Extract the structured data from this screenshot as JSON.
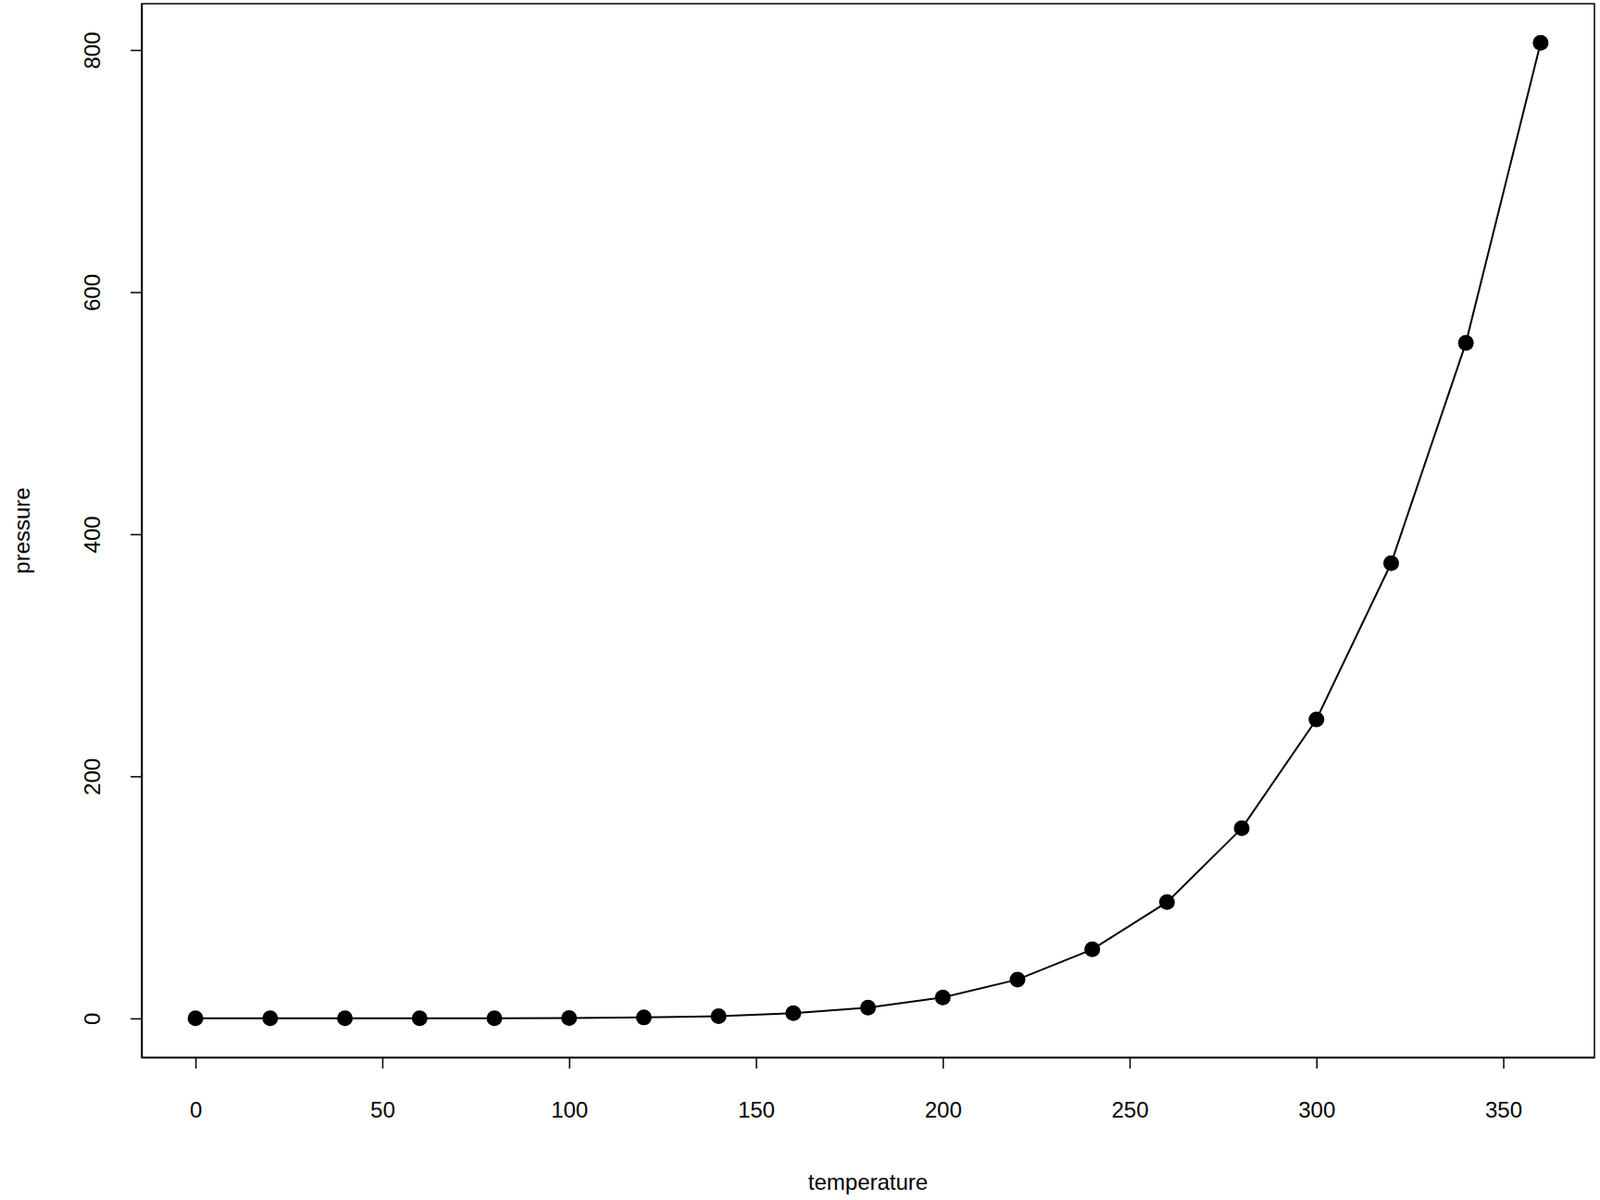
{
  "chart_data": {
    "type": "line",
    "x_label": "temperature",
    "y_label": "pressure",
    "x": [
      0,
      20,
      40,
      60,
      80,
      100,
      120,
      140,
      160,
      180,
      200,
      220,
      240,
      260,
      280,
      300,
      320,
      340,
      360
    ],
    "values": [
      0.0002,
      0.0012,
      0.006,
      0.03,
      0.09,
      0.27,
      0.75,
      1.85,
      4.2,
      8.8,
      17.3,
      32.1,
      57,
      96,
      157,
      247,
      376,
      558,
      806
    ],
    "color": "#000000",
    "marker": "circle",
    "line_style": "solid",
    "xlim": [
      -14.4,
      374.4
    ],
    "ylim": [
      -32.24,
      838.24
    ],
    "xticks": [
      0,
      50,
      100,
      150,
      200,
      250,
      300,
      350
    ],
    "yticks": [
      0,
      200,
      400,
      600,
      800
    ]
  }
}
